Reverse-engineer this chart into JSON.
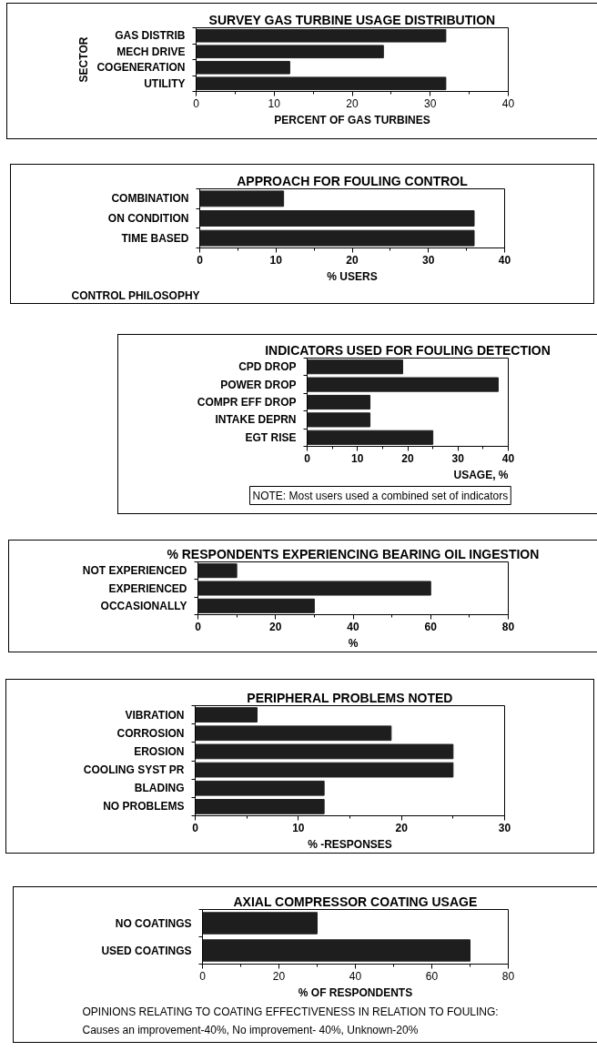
{
  "chart_data": [
    {
      "type": "bar",
      "orientation": "horizontal",
      "title": "SURVEY GAS TURBINE USAGE DISTRIBUTION",
      "xlabel": "PERCENT OF GAS TURBINES",
      "ylabel": "SECTOR",
      "categories": [
        "GAS DISTRIB",
        "MECH DRIVE",
        "COGENERATION",
        "UTILITY"
      ],
      "values": [
        32,
        24,
        12,
        32
      ],
      "color": "#1e1e1e",
      "xlim": [
        0,
        40
      ],
      "xticks": [
        0,
        {
          "value": 5,
          "label": null
        },
        10,
        {
          "value": 15,
          "label": null
        },
        20,
        {
          "value": 25,
          "label": null
        },
        30,
        {
          "value": 35,
          "label": null
        },
        40
      ]
    },
    {
      "type": "bar",
      "orientation": "horizontal",
      "title": "APPROACH FOR FOULING CONTROL",
      "xlabel": "% USERS",
      "ylabel": "CONTROL PHILOSOPHY",
      "categories": [
        "COMBINATION",
        "ON CONDITION",
        "TIME BASED"
      ],
      "values": [
        11,
        36,
        36
      ],
      "color": "#1e1e1e",
      "xlim": [
        0,
        40
      ],
      "xticks": [
        0,
        {
          "value": 5,
          "label": null
        },
        10,
        {
          "value": 15,
          "label": null
        },
        20,
        {
          "value": 25,
          "label": null
        },
        30,
        {
          "value": 35,
          "label": null
        },
        40
      ]
    },
    {
      "type": "bar",
      "orientation": "horizontal",
      "title": "INDICATORS USED FOR FOULING DETECTION",
      "xlabel": "USAGE, %",
      "categories": [
        "CPD DROP",
        "POWER DROP",
        "COMPR EFF DROP",
        "INTAKE DEPRN",
        "EGT RISE"
      ],
      "values": [
        19,
        38,
        12.5,
        12.5,
        25
      ],
      "color": "#1e1e1e",
      "xlim": [
        0,
        40
      ],
      "xticks": [
        0,
        {
          "value": 5,
          "label": null
        },
        10,
        {
          "value": 15,
          "label": null
        },
        20,
        {
          "value": 25,
          "label": null
        },
        30,
        {
          "value": 35,
          "label": null
        },
        40
      ],
      "annotations": [
        "NOTE: Most users used a combined set of indicators"
      ]
    },
    {
      "type": "bar",
      "orientation": "horizontal",
      "title": "% RESPONDENTS EXPERIENCING BEARING OIL INGESTION",
      "xlabel": "%",
      "categories": [
        "NOT EXPERIENCED",
        "EXPERIENCED",
        "OCCASIONALLY"
      ],
      "values": [
        10,
        60,
        30
      ],
      "color": "#1e1e1e",
      "xlim": [
        0,
        80
      ],
      "xticks": [
        0,
        {
          "value": 10,
          "label": null
        },
        20,
        {
          "value": 30,
          "label": null
        },
        40,
        {
          "value": 50,
          "label": null
        },
        60,
        {
          "value": 70,
          "label": null
        },
        80
      ]
    },
    {
      "type": "bar",
      "orientation": "horizontal",
      "title": "PERIPHERAL PROBLEMS NOTED",
      "xlabel": "% -RESPONSES",
      "categories": [
        "VIBRATION",
        "CORROSION",
        "EROSION",
        "COOLING SYST PR",
        "BLADING",
        "NO PROBLEMS"
      ],
      "values": [
        6,
        19,
        25,
        25,
        12.5,
        12.5
      ],
      "color": "#1e1e1e",
      "xlim": [
        0,
        30
      ],
      "xticks": [
        0,
        {
          "value": 5,
          "label": null
        },
        10,
        {
          "value": 15,
          "label": null
        },
        20,
        {
          "value": 25,
          "label": null
        },
        30
      ]
    },
    {
      "type": "bar",
      "orientation": "horizontal",
      "title": "AXIAL COMPRESSOR COATING USAGE",
      "xlabel": "% OF RESPONDENTS",
      "categories": [
        "NO COATINGS",
        "USED COATINGS"
      ],
      "values": [
        30,
        70
      ],
      "color": "#1e1e1e",
      "xlim": [
        0,
        80
      ],
      "xticks": [
        0,
        {
          "value": 10,
          "label": null
        },
        20,
        {
          "value": 30,
          "label": null
        },
        40,
        {
          "value": 50,
          "label": null
        },
        60,
        {
          "value": 70,
          "label": null
        },
        80
      ],
      "annotations": [
        "OPINIONS RELATING TO COATING EFFECTIVENESS IN RELATION TO FOULING:",
        "Causes an improvement-40%, No improvement- 40%, Unknown-20%"
      ]
    }
  ]
}
